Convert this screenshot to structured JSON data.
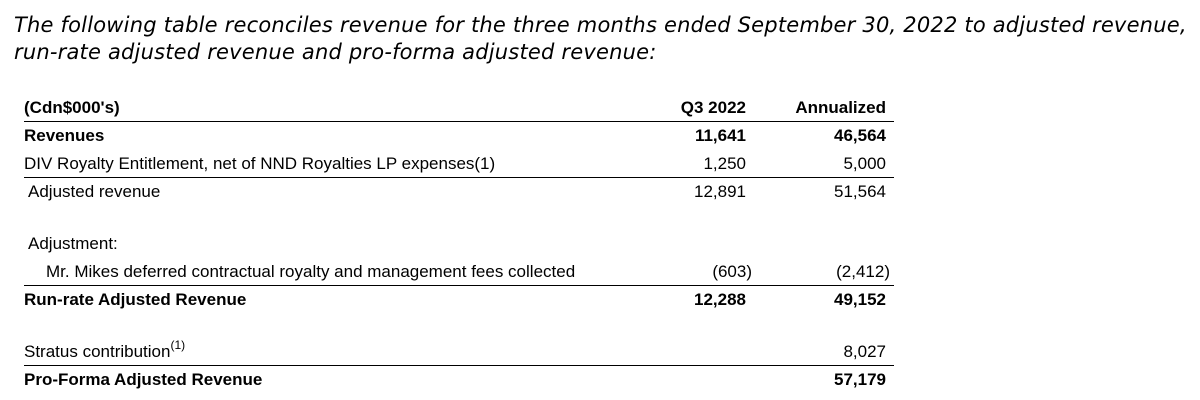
{
  "intro": "The following table reconciles revenue for the three months ended September 30, 2022 to adjusted revenue, run-rate adjusted revenue and pro-forma adjusted revenue:",
  "table": {
    "header": {
      "label": "(Cdn$000's)",
      "col1": "Q3 2022",
      "col2": "Annualized"
    },
    "revenues": {
      "label": "Revenues",
      "col1": "11,641",
      "col2": "46,564"
    },
    "div_royalty": {
      "label": "DIV Royalty Entitlement, net of NND Royalties LP expenses(1)",
      "col1": "1,250",
      "col2": "5,000"
    },
    "adjusted_revenue": {
      "label": "Adjusted revenue",
      "col1": "12,891",
      "col2": "51,564"
    },
    "adjustment_label": "Adjustment:",
    "mr_mikes": {
      "label": "Mr. Mikes deferred contractual royalty and management fees collected",
      "col1": "(603)",
      "col2": "(2,412)"
    },
    "run_rate": {
      "label": "Run-rate Adjusted Revenue",
      "col1": "12,288",
      "col2": "49,152"
    },
    "stratus": {
      "label": "Stratus contribution",
      "sup": "(1)",
      "col2": "8,027"
    },
    "pro_forma": {
      "label": "Pro-Forma Adjusted Revenue",
      "col2": "57,179"
    }
  }
}
